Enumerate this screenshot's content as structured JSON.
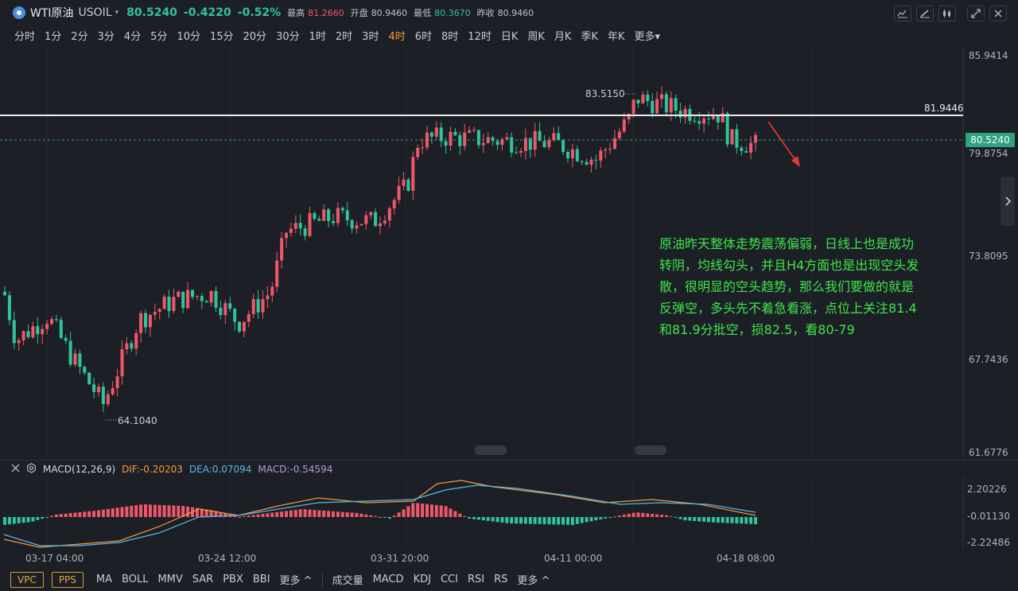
{
  "header": {
    "symbol_name": "WTI原油",
    "symbol_code": "USOIL",
    "caret": "▾",
    "last_price": "80.5240",
    "change": "-0.4220",
    "change_pct": "-0.52%",
    "stats": [
      {
        "label": "最高",
        "value": "81.2660",
        "color": "red"
      },
      {
        "label": "开盘",
        "value": "80.9460",
        "color": "gray"
      },
      {
        "label": "最低",
        "value": "80.3670",
        "color": "green"
      },
      {
        "label": "昨收",
        "value": "80.9460",
        "color": "gray"
      }
    ],
    "tool_icons": [
      "line-chart-icon",
      "draw-icon",
      "candle-type-icon",
      "fullscreen-icon",
      "close-icon"
    ]
  },
  "periods": {
    "items": [
      "分时",
      "1分",
      "2分",
      "3分",
      "4分",
      "5分",
      "10分",
      "15分",
      "20分",
      "30分",
      "1时",
      "2时",
      "3时",
      "4时",
      "6时",
      "8时",
      "12时",
      "日K",
      "周K",
      "月K",
      "季K",
      "年K",
      "更多▾"
    ],
    "active": "4时"
  },
  "price_axis": {
    "labels": [
      "85.9414",
      "79.8754",
      "73.8095",
      "67.7436",
      "61.6776"
    ],
    "current_price": "80.5240",
    "resistance_line": "81.9446"
  },
  "extremes": {
    "high": "83.5150",
    "low": "64.1040"
  },
  "annotation_text": "原油昨天整体走势震荡偏弱，日线上也是成功转阴，均线勾头，并且H4方面也是出现空头发散，很明显的空头趋势，那么我们要做的就是反弹空，多头先不着急看涨，点位上关注81.4和81.9分批空，损82.5，看80-79",
  "macd": {
    "title": "MACD(12,26,9)",
    "dif": "DIF:-0.20203",
    "dea": "DEA:0.07094",
    "macd": "MACD:-0.54594",
    "axis_labels": [
      "2.20226",
      "-0.01130",
      "-2.22486"
    ]
  },
  "time_axis": [
    "03-17 04:00",
    "03-24 12:00",
    "03-31 20:00",
    "04-11 00:00",
    "04-18 08:00"
  ],
  "bottom": {
    "buttons": [
      "VPC",
      "PPS"
    ],
    "main_indicators": [
      "MA",
      "BOLL",
      "MMV",
      "SAR",
      "PBX",
      "BBI",
      "更多 ^"
    ],
    "sub_indicators": [
      "成交量",
      "MACD",
      "KDJ",
      "CCI",
      "RSI",
      "RS",
      "更多 ^"
    ]
  },
  "colors": {
    "up": "#f0586a",
    "down": "#2fc59b",
    "accent": "#f59a3c",
    "annotation": "#3ee64b",
    "dif": "#f59a3c",
    "dea": "#5ab8e8",
    "macd_label": "#b39ddb"
  }
}
